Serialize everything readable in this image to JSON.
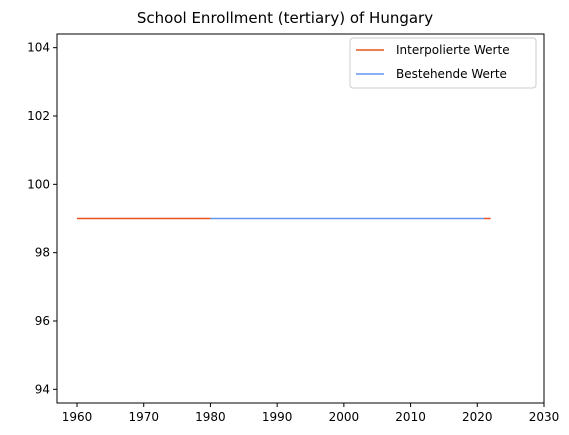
{
  "chart_data": {
    "type": "line",
    "title": "School Enrollment (tertiary) of Hungary",
    "xlabel": "",
    "ylabel": "",
    "xlim": [
      1957,
      2030
    ],
    "ylim": [
      93.6,
      104.4
    ],
    "x_ticks": [
      1960,
      1970,
      1980,
      1990,
      2000,
      2010,
      2020,
      2030
    ],
    "y_ticks": [
      94,
      96,
      98,
      100,
      102,
      104
    ],
    "grid": false,
    "legend_position": "top-right",
    "series": [
      {
        "name": "Interpolierte Werte",
        "color": "#e8541c",
        "segments": [
          {
            "x": [
              1960,
              1980
            ],
            "y": [
              99,
              99
            ]
          },
          {
            "x": [
              2021,
              2022
            ],
            "y": [
              99,
              99
            ]
          }
        ]
      },
      {
        "name": "Bestehende Werte",
        "color": "#6495ed",
        "segments": [
          {
            "x": [
              1980,
              2021
            ],
            "y": [
              99,
              99
            ]
          }
        ]
      }
    ]
  }
}
